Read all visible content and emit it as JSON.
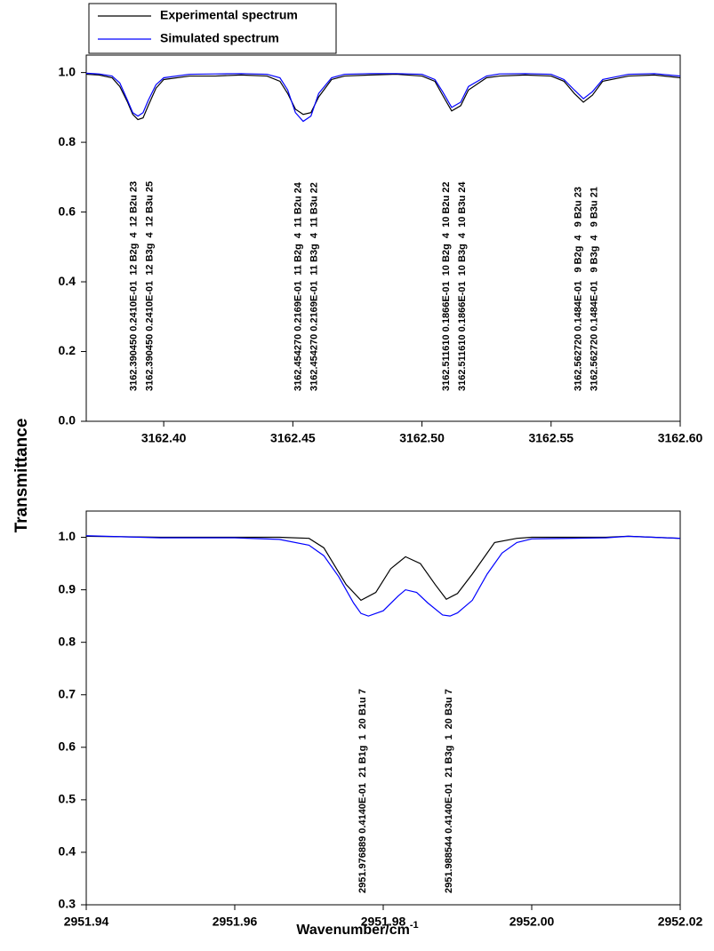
{
  "chart_data": [
    {
      "type": "line",
      "ylabel": "Transmittance",
      "xlim": [
        3162.37,
        3162.6
      ],
      "xticks": [
        {
          "value": 3162.4,
          "label": "3162.40"
        },
        3162.45,
        {
          "value": 3162.5,
          "label": "3162.50"
        },
        3162.55,
        {
          "value": 3162.6,
          "label": "3162.60"
        }
      ],
      "ylim": [
        0,
        1.05
      ],
      "yticks": [
        {
          "value": 0,
          "label": "0.0"
        },
        0.2,
        0.4,
        0.6,
        0.8,
        {
          "value": 1,
          "label": "1.0"
        }
      ],
      "series": [
        {
          "name": "Experimental spectrum",
          "color": "#000000",
          "x": [
            3162.37,
            3162.375,
            3162.38,
            3162.383,
            3162.386,
            3162.388,
            3162.39,
            3162.392,
            3162.394,
            3162.397,
            3162.4,
            3162.41,
            3162.42,
            3162.43,
            3162.44,
            3162.445,
            3162.448,
            3162.451,
            3162.454,
            3162.457,
            3162.46,
            3162.465,
            3162.47,
            3162.48,
            3162.49,
            3162.5,
            3162.505,
            3162.508,
            3162.5115,
            3162.515,
            3162.518,
            3162.525,
            3162.53,
            3162.54,
            3162.55,
            3162.555,
            3162.559,
            3162.5625,
            3162.566,
            3162.57,
            3162.58,
            3162.59,
            3162.6
          ],
          "values": [
            0.995,
            0.993,
            0.985,
            0.96,
            0.915,
            0.88,
            0.865,
            0.87,
            0.905,
            0.955,
            0.98,
            0.99,
            0.99,
            0.993,
            0.99,
            0.975,
            0.94,
            0.895,
            0.88,
            0.885,
            0.93,
            0.98,
            0.99,
            0.993,
            0.995,
            0.99,
            0.975,
            0.935,
            0.89,
            0.905,
            0.95,
            0.985,
            0.99,
            0.993,
            0.99,
            0.975,
            0.94,
            0.915,
            0.935,
            0.975,
            0.99,
            0.993,
            0.985
          ]
        },
        {
          "name": "Simulated spectrum",
          "color": "#0000ff",
          "x": [
            3162.37,
            3162.375,
            3162.38,
            3162.383,
            3162.386,
            3162.388,
            3162.39,
            3162.392,
            3162.394,
            3162.397,
            3162.4,
            3162.41,
            3162.42,
            3162.43,
            3162.44,
            3162.445,
            3162.448,
            3162.451,
            3162.454,
            3162.457,
            3162.46,
            3162.465,
            3162.47,
            3162.48,
            3162.49,
            3162.5,
            3162.505,
            3162.508,
            3162.5115,
            3162.515,
            3162.518,
            3162.525,
            3162.53,
            3162.54,
            3162.55,
            3162.555,
            3162.559,
            3162.5625,
            3162.566,
            3162.57,
            3162.58,
            3162.59,
            3162.6
          ],
          "values": [
            0.998,
            0.996,
            0.99,
            0.97,
            0.92,
            0.885,
            0.875,
            0.885,
            0.92,
            0.965,
            0.985,
            0.995,
            0.996,
            0.997,
            0.995,
            0.985,
            0.95,
            0.885,
            0.86,
            0.875,
            0.94,
            0.985,
            0.995,
            0.997,
            0.997,
            0.995,
            0.98,
            0.945,
            0.9,
            0.915,
            0.96,
            0.99,
            0.996,
            0.997,
            0.995,
            0.98,
            0.95,
            0.925,
            0.945,
            0.98,
            0.995,
            0.997,
            0.99
          ]
        }
      ],
      "annotations": [
        {
          "x": 3162.39045,
          "lines": [
            "3162.390450 0.2410E-01  12 B2g  4  12 B2u 23",
            "3162.390450 0.2410E-01  12 B3g  4  12 B3u 25"
          ]
        },
        {
          "x": 3162.45427,
          "lines": [
            "3162.454270 0.2169E-01  11 B2g  4  11 B2u 24",
            "3162.454270 0.2169E-01  11 B3g  4  11 B3u 22"
          ]
        },
        {
          "x": 3162.51161,
          "lines": [
            "3162.511610 0.1866E-01  10 B2g  4  10 B2u 22",
            "3162.511610 0.1866E-01  10 B3g  4  10 B3u 24"
          ]
        },
        {
          "x": 3162.56272,
          "lines": [
            "3162.562720 0.1484E-01   9 B2g  4   9 B2u 23",
            "3162.562720 0.1484E-01   9 B3g  4   9 B3u 21"
          ]
        }
      ]
    },
    {
      "type": "line",
      "xlabel": {
        "text": "Wavenumber/cm",
        "superscript": "-1"
      },
      "xlim": [
        2951.94,
        2952.02
      ],
      "xticks": [
        2951.94,
        2951.96,
        2951.98,
        {
          "value": 2952.0,
          "label": "2952.00"
        },
        2952.02
      ],
      "ylim": [
        0.3,
        1.05
      ],
      "yticks": [
        0.3,
        0.4,
        0.5,
        0.6,
        0.7,
        0.8,
        0.9,
        {
          "value": 1,
          "label": "1.0"
        }
      ],
      "series": [
        {
          "name": "Experimental spectrum",
          "color": "#000000",
          "x": [
            2951.94,
            2951.95,
            2951.96,
            2951.966,
            2951.97,
            2951.972,
            2951.975,
            2951.977,
            2951.979,
            2951.981,
            2951.983,
            2951.985,
            2951.987,
            2951.9885,
            2951.99,
            2951.992,
            2951.995,
            2951.998,
            2952.0,
            2952.01,
            2952.013,
            2952.02
          ],
          "values": [
            1.002,
            1.0,
            1.0,
            1.0,
            0.998,
            0.98,
            0.91,
            0.88,
            0.895,
            0.94,
            0.963,
            0.95,
            0.91,
            0.882,
            0.893,
            0.93,
            0.99,
            0.998,
            1.0,
            1.0,
            1.002,
            0.998
          ]
        },
        {
          "name": "Simulated spectrum",
          "color": "#0000ff",
          "x": [
            2951.94,
            2951.95,
            2951.96,
            2951.966,
            2951.97,
            2951.972,
            2951.974,
            2951.976,
            2951.977,
            2951.978,
            2951.98,
            2951.982,
            2951.983,
            2951.9845,
            2951.986,
            2951.988,
            2951.989,
            2951.99,
            2951.992,
            2951.994,
            2951.996,
            2951.998,
            2952.0,
            2952.01,
            2952.013,
            2952.02
          ],
          "values": [
            1.003,
            0.999,
            0.999,
            0.996,
            0.985,
            0.965,
            0.925,
            0.875,
            0.855,
            0.85,
            0.86,
            0.888,
            0.9,
            0.895,
            0.875,
            0.852,
            0.85,
            0.856,
            0.88,
            0.93,
            0.97,
            0.99,
            0.997,
            0.999,
            1.002,
            0.998
          ]
        }
      ],
      "annotations": [
        {
          "x": 2951.976889,
          "lines": [
            "2951.976889 0.4140E-01  21 B1g  1  20 B1u 7"
          ]
        },
        {
          "x": 2951.988544,
          "lines": [
            "2951.988544 0.4140E-01  21 B3g  1  20 B3u 7"
          ]
        }
      ]
    }
  ]
}
